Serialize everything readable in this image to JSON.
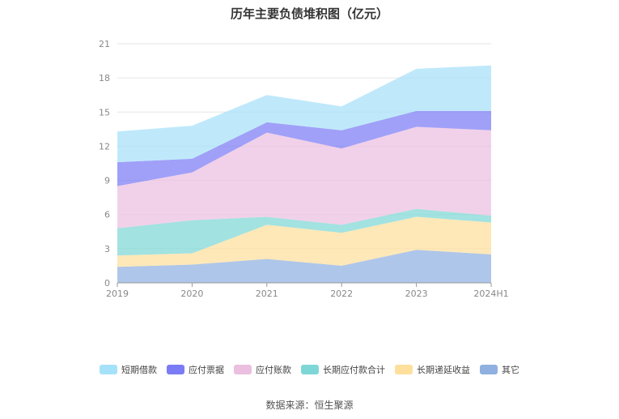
{
  "chart_data": {
    "type": "area",
    "stacked": true,
    "title": "历年主要负债堆积图（亿元）",
    "categories": [
      "2019",
      "2020",
      "2021",
      "2022",
      "2023",
      "2024H1"
    ],
    "y_ticks": [
      "0",
      "3",
      "6",
      "9",
      "12",
      "15",
      "18",
      "21"
    ],
    "ylim": [
      0,
      21
    ],
    "grid": true,
    "legend_position": "bottom",
    "series": [
      {
        "name": "其它",
        "color": "#8fb0e0",
        "values": [
          1.4,
          1.6,
          2.1,
          1.5,
          2.9,
          2.5
        ]
      },
      {
        "name": "长期递延收益",
        "color": "#fedf9c",
        "values": [
          1.0,
          1.0,
          3.0,
          2.9,
          2.9,
          2.8
        ]
      },
      {
        "name": "长期应付款合计",
        "color": "#7ed7d6",
        "values": [
          2.4,
          2.9,
          0.7,
          0.7,
          0.7,
          0.6
        ]
      },
      {
        "name": "应付账款",
        "color": "#ebbfe0",
        "values": [
          3.7,
          4.2,
          7.4,
          6.7,
          7.2,
          7.5
        ]
      },
      {
        "name": "应付票据",
        "color": "#7b7cf5",
        "values": [
          2.1,
          1.2,
          0.9,
          1.6,
          1.4,
          1.7
        ]
      },
      {
        "name": "短期借款",
        "color": "#a6e1fa",
        "values": [
          2.7,
          2.9,
          2.4,
          2.1,
          3.7,
          4.0
        ]
      }
    ],
    "legend_order": [
      "短期借款",
      "应付票据",
      "应付账款",
      "长期应付款合计",
      "长期递延收益",
      "其它"
    ]
  },
  "source": "数据来源：恒生聚源"
}
